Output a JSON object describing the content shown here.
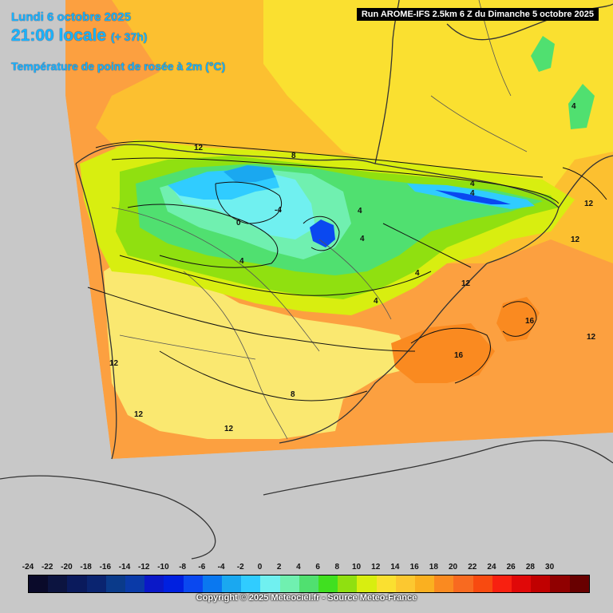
{
  "header": {
    "date": "Lundi 6 octobre 2025",
    "time": "21:00 locale",
    "lead": "(+ 37h)",
    "parameter": "Température de point de rosée à 2m (°C)"
  },
  "run_info": "Run AROME-IFS 2.5km 6 Z du Dimanche 5 octobre 2025",
  "legend": {
    "values": [
      "-24",
      "-22",
      "-20",
      "-18",
      "-16",
      "-14",
      "-12",
      "-10",
      "-8",
      "-6",
      "-4",
      "-2",
      "0",
      "2",
      "4",
      "6",
      "8",
      "10",
      "12",
      "14",
      "16",
      "18",
      "20",
      "22",
      "24",
      "26",
      "28",
      "30"
    ],
    "colors": [
      "#0a0a2a",
      "#0c1440",
      "#0a1a5c",
      "#0a2470",
      "#0a3a8a",
      "#0a3aa8",
      "#0a18c8",
      "#0020e0",
      "#0a48f0",
      "#0a78f0",
      "#1aa8f0",
      "#30ccff",
      "#70f0f0",
      "#70f0b0",
      "#50e070",
      "#40e020",
      "#90e010",
      "#d8ee10",
      "#fae030",
      "#fcc830",
      "#fab020",
      "#fa8a20",
      "#f86a20",
      "#f84a10",
      "#f82010",
      "#e00808",
      "#c00000",
      "#900000",
      "#680000"
    ]
  },
  "contour_labels": [
    "12",
    "8",
    "4",
    "4",
    "4",
    "4",
    "4",
    "0",
    "-4",
    "4",
    "4",
    "4",
    "12",
    "12",
    "12",
    "8",
    "16",
    "16",
    "12",
    "12",
    "12",
    "8",
    "12",
    "4"
  ],
  "copyright": "Copyright © 2025 Meteociel.fr - Source Meteo-France",
  "colors": {
    "ocean": "#c8c8c8",
    "title": "#18b4ff"
  }
}
